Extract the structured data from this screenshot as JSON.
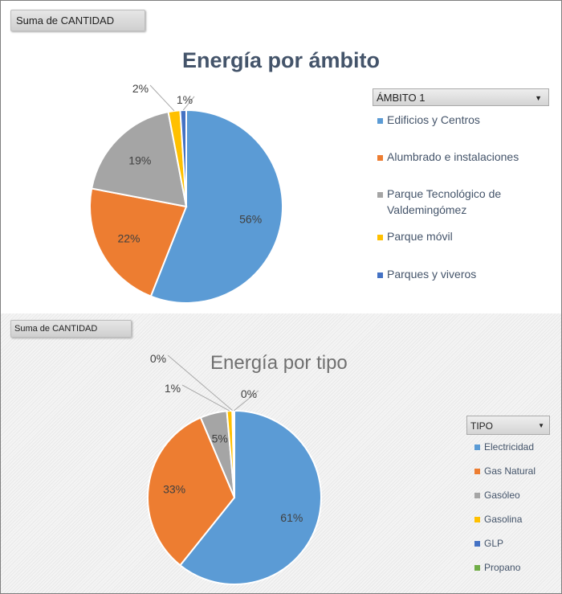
{
  "chart_data": [
    {
      "type": "pie",
      "title": "Energía por ámbito",
      "field_button": "Suma de CANTIDAD",
      "legend_title": "ÁMBITO 1",
      "categories": [
        "Edificios y Centros",
        "Alumbrado e instalaciones",
        "Parque Tecnológico de Valdemingómez",
        "Parque móvil",
        "Parques y viveros"
      ],
      "values": [
        56,
        22,
        19,
        2,
        1
      ],
      "labels": [
        "56%",
        "22%",
        "19%",
        "2%",
        "1%"
      ],
      "colors": [
        "#5b9bd5",
        "#ed7d31",
        "#a5a5a5",
        "#ffc000",
        "#4472c4"
      ],
      "legend_position": "right"
    },
    {
      "type": "pie",
      "title": "Energía por tipo",
      "field_button": "Suma de CANTIDAD",
      "legend_title": "TIPO",
      "categories": [
        "Electricidad",
        "Gas Natural",
        "Gasóleo",
        "Gasolina",
        "GLP",
        "Propano"
      ],
      "values": [
        61,
        33,
        5,
        1,
        0.2,
        0.2
      ],
      "labels": [
        "61%",
        "33%",
        "5%",
        "1%",
        "0%",
        "0%"
      ],
      "colors": [
        "#5b9bd5",
        "#ed7d31",
        "#a5a5a5",
        "#ffc000",
        "#4472c4",
        "#70ad47"
      ],
      "legend_position": "right"
    }
  ]
}
